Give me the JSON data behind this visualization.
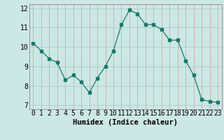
{
  "x": [
    0,
    1,
    2,
    3,
    4,
    5,
    6,
    7,
    8,
    9,
    10,
    11,
    12,
    13,
    14,
    15,
    16,
    17,
    18,
    19,
    20,
    21,
    22,
    23
  ],
  "y": [
    10.2,
    9.8,
    9.4,
    9.2,
    8.3,
    8.55,
    8.2,
    7.65,
    8.4,
    9.0,
    9.8,
    11.15,
    11.9,
    11.7,
    11.15,
    11.15,
    10.9,
    10.35,
    10.35,
    9.3,
    8.55,
    7.3,
    7.2,
    7.15
  ],
  "line_color": "#1a7a6a",
  "marker_color": "#1a7a6a",
  "bg_color": "#cce8e4",
  "grid_color_x": "#c8a0a0",
  "grid_color_y": "#a8c8c4",
  "xlabel": "Humidex (Indice chaleur)",
  "ylim": [
    6.8,
    12.2
  ],
  "xlim": [
    -0.5,
    23.5
  ],
  "yticks": [
    7,
    8,
    9,
    10,
    11,
    12
  ],
  "xticks": [
    0,
    1,
    2,
    3,
    4,
    5,
    6,
    7,
    8,
    9,
    10,
    11,
    12,
    13,
    14,
    15,
    16,
    17,
    18,
    19,
    20,
    21,
    22,
    23
  ],
  "label_fontsize": 7.5,
  "tick_fontsize": 7
}
